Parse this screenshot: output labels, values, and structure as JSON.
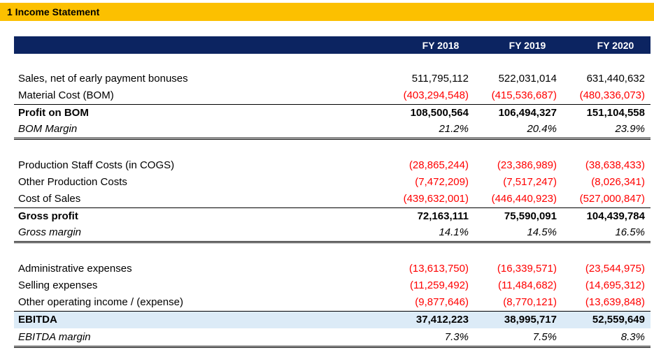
{
  "title": "1  Income Statement",
  "years": [
    "FY 2018",
    "FY 2019",
    "FY 2020"
  ],
  "rows": [
    {
      "label": "Sales, net of early payment bonuses",
      "values": [
        "511,795,112",
        "522,031,014",
        "631,440,632"
      ],
      "style": "normal",
      "neg": false
    },
    {
      "label": "Material Cost (BOM)",
      "values": [
        "(403,294,548)",
        "(415,536,687)",
        "(480,336,073)"
      ],
      "style": "normal",
      "neg": true
    },
    {
      "label": "Profit on BOM",
      "values": [
        "108,500,564",
        "106,494,327",
        "151,104,558"
      ],
      "style": "total",
      "neg": false
    },
    {
      "label": "BOM Margin",
      "values": [
        "21.2%",
        "20.4%",
        "23.9%"
      ],
      "style": "margin",
      "neg": false
    },
    {
      "label": "Production Staff Costs (in COGS)",
      "values": [
        "(28,865,244)",
        "(23,386,989)",
        "(38,638,433)"
      ],
      "style": "normal",
      "neg": true
    },
    {
      "label": "Other Production Costs",
      "values": [
        "(7,472,209)",
        "(7,517,247)",
        "(8,026,341)"
      ],
      "style": "normal",
      "neg": true
    },
    {
      "label": "Cost of Sales",
      "values": [
        "(439,632,001)",
        "(446,440,923)",
        "(527,000,847)"
      ],
      "style": "normal",
      "neg": true
    },
    {
      "label": "Gross profit",
      "values": [
        "72,163,111",
        "75,590,091",
        "104,439,784"
      ],
      "style": "total",
      "neg": false
    },
    {
      "label": "Gross margin",
      "values": [
        "14.1%",
        "14.5%",
        "16.5%"
      ],
      "style": "margin",
      "neg": false
    },
    {
      "label": "Administrative expenses",
      "values": [
        "(13,613,750)",
        "(16,339,571)",
        "(23,544,975)"
      ],
      "style": "normal",
      "neg": true
    },
    {
      "label": "Selling expenses",
      "values": [
        "(11,259,492)",
        "(11,484,682)",
        "(14,695,312)"
      ],
      "style": "normal",
      "neg": true
    },
    {
      "label": "Other operating income / (expense)",
      "values": [
        "(9,877,646)",
        "(8,770,121)",
        "(13,639,848)"
      ],
      "style": "normal",
      "neg": true
    },
    {
      "label": "EBITDA",
      "values": [
        "37,412,223",
        "38,995,717",
        "52,559,649"
      ],
      "style": "ebitda",
      "neg": false
    },
    {
      "label": "EBITDA margin",
      "values": [
        "7.3%",
        "7.5%",
        "8.3%"
      ],
      "style": "margin",
      "neg": false
    }
  ],
  "colors": {
    "title_bg": "#fcc000",
    "header_bg": "#0c2461",
    "negative": "#ff0000",
    "highlight": "#dcebf7"
  }
}
